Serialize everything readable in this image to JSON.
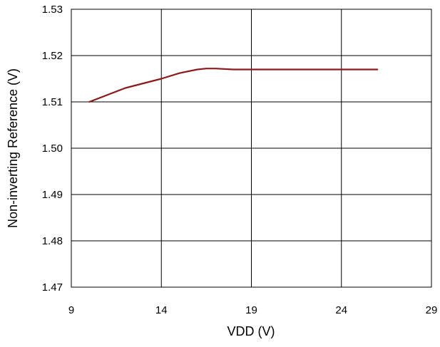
{
  "chart_data": {
    "type": "line",
    "title": "",
    "xlabel": "VDD (V)",
    "ylabel": "Non-inverting Reference (V)",
    "xlim": [
      9,
      29
    ],
    "ylim": [
      1.47,
      1.53
    ],
    "x_ticks": [
      "9",
      "14",
      "19",
      "24",
      "29"
    ],
    "y_ticks": [
      "1.47",
      "1.48",
      "1.49",
      "1.50",
      "1.51",
      "1.52",
      "1.53"
    ],
    "grid": true,
    "legend": "none",
    "series": [
      {
        "color": "#8b1a1a",
        "x": [
          10,
          11,
          12,
          13,
          14,
          15,
          16,
          16.5,
          17,
          18,
          20,
          22,
          24,
          26
        ],
        "y": [
          1.51,
          1.5115,
          1.513,
          1.514,
          1.515,
          1.5162,
          1.517,
          1.5172,
          1.5172,
          1.517,
          1.517,
          1.517,
          1.517,
          1.517
        ]
      }
    ]
  }
}
